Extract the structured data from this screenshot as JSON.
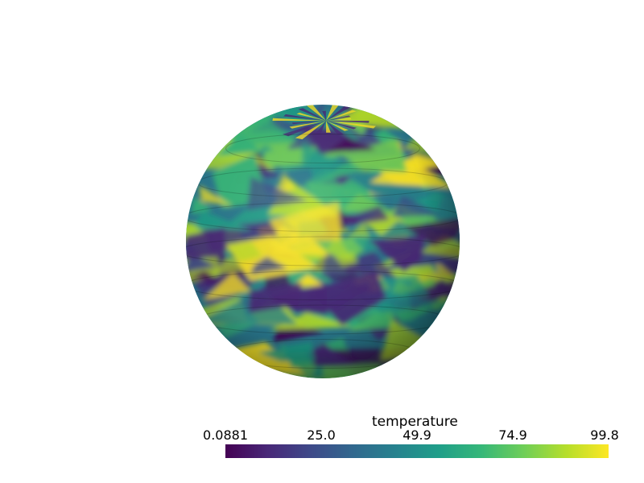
{
  "scene": {
    "object": "sphere",
    "colormap": "viridis",
    "colormap_stops": [
      "#440154",
      "#482878",
      "#3e4989",
      "#31688e",
      "#26828e",
      "#1f9e89",
      "#35b779",
      "#6ece58",
      "#b5de2b",
      "#fde725"
    ]
  },
  "colorbar": {
    "title": "temperature",
    "ticks": [
      "0.0881",
      "25.0",
      "49.9",
      "74.9",
      "99.8"
    ],
    "range": [
      0.0881,
      99.8
    ]
  }
}
